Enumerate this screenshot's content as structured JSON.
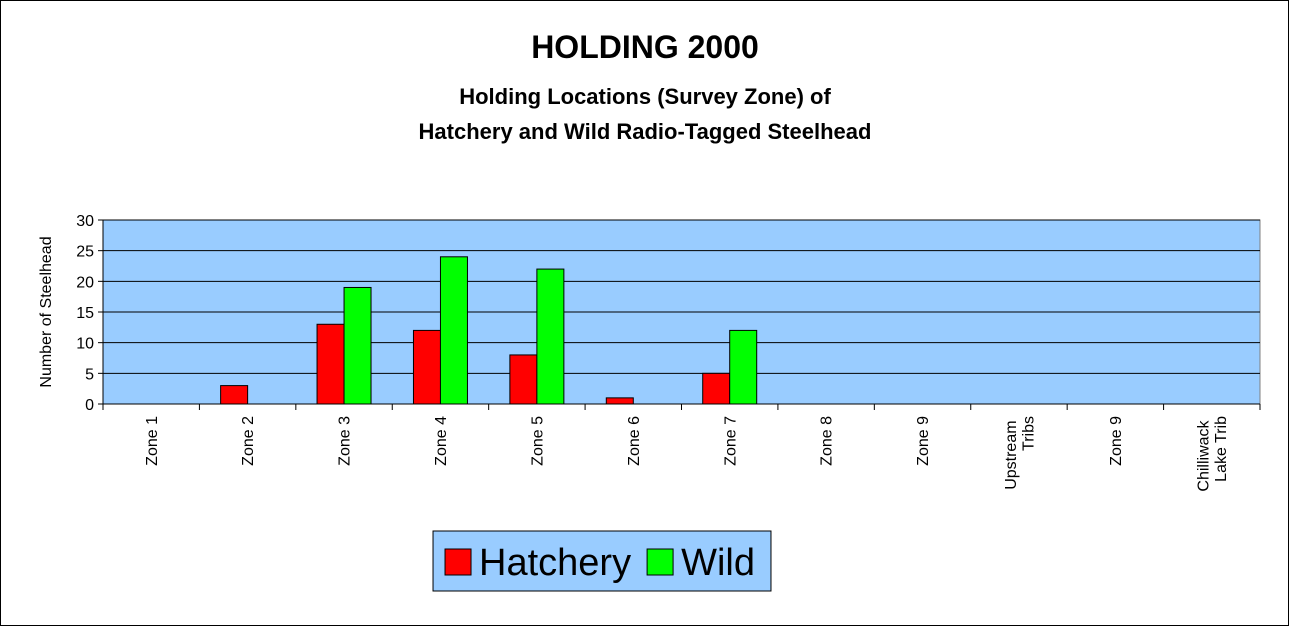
{
  "chart_data": {
    "type": "bar",
    "title": "HOLDING 2000",
    "subtitle": [
      "Holding Locations (Survey Zone) of",
      "Hatchery and Wild Radio-Tagged Steelhead"
    ],
    "y_label": "Number of Steelhead",
    "categories": [
      "Zone 1",
      "Zone 2",
      "Zone 3",
      "Zone 4",
      "Zone 5",
      "Zone 6",
      "Zone 7",
      "Zone 8",
      "Zone 9",
      "Upstream Tribs",
      "Zone 9",
      "Chilliwack Lake Trib"
    ],
    "series": [
      {
        "name": "Hatchery",
        "color": "#ff0000",
        "values": [
          0,
          3,
          13,
          12,
          8,
          1,
          5,
          0,
          0,
          0,
          0,
          0
        ]
      },
      {
        "name": "Wild",
        "color": "#00ff00",
        "values": [
          0,
          0,
          19,
          24,
          22,
          0,
          12,
          0,
          0,
          0,
          0,
          0
        ]
      }
    ],
    "ylim": [
      0,
      30
    ],
    "yticks": [
      0,
      5,
      10,
      15,
      20,
      25,
      30
    ],
    "grid": true,
    "plot_background": "#99ccff",
    "legend": "bottom"
  }
}
